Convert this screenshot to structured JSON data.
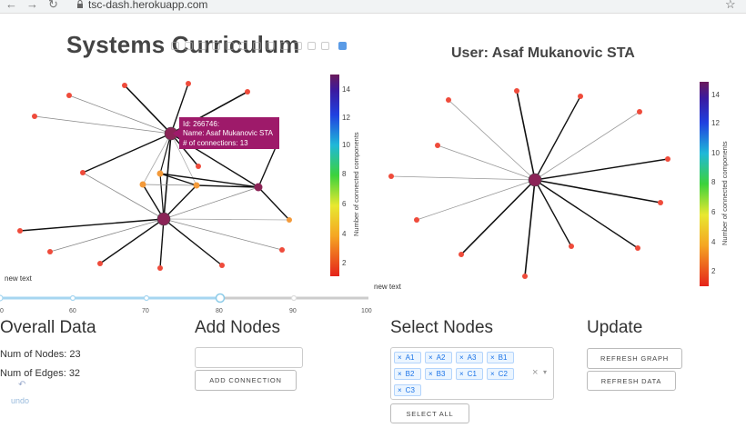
{
  "browser": {
    "url": "tsc-dash.herokuapp.com",
    "back": "←",
    "forward": "→",
    "reload": "↻",
    "bookmark": "☆"
  },
  "left_graph": {
    "title": "Systems Curriculum",
    "tooltip": {
      "id_line": "Id: 266746:",
      "name_line": "Name: Asaf Mukanovic STA",
      "conn_line": "# of connections: 13",
      "color": "#9e1a6a"
    },
    "colorbar": {
      "title": "Number of connected components",
      "ticks": [
        "2",
        "4",
        "6",
        "8",
        "10",
        "12",
        "14"
      ]
    },
    "footnote": "new text"
  },
  "right_graph": {
    "title": "User: Asaf Mukanovic STA",
    "colorbar": {
      "title": "Number of connected components",
      "ticks": [
        "2",
        "4",
        "6",
        "8",
        "10",
        "12",
        "14"
      ]
    },
    "footnote": "new text"
  },
  "slider": {
    "min": 50,
    "max": 100,
    "value": 80,
    "labels": [
      "0",
      "60",
      "70",
      "80",
      "90",
      "100"
    ]
  },
  "overall": {
    "heading": "Overall Data",
    "nodes": "Num of Nodes: 23",
    "edges": "Num of Edges: 32",
    "undo_icon": "undo-icon",
    "undo_label": "undo"
  },
  "add_nodes": {
    "heading": "Add Nodes",
    "input_value": "",
    "button": "Add Connection"
  },
  "select_nodes": {
    "heading": "Select Nodes",
    "chips": [
      "A1",
      "A2",
      "A3",
      "B1",
      "B2",
      "B3",
      "C1",
      "C2",
      "C3"
    ],
    "clear": "×",
    "caret": "▾",
    "button": "Select All",
    "chip_remove": "×"
  },
  "update": {
    "heading": "Update",
    "refresh_graph": "Refresh Graph",
    "refresh_data": "Refresh Data"
  },
  "colors": {
    "red_node": "#ef4b3b",
    "orange_node": "#f39a3a",
    "hub_node": "#8b2457",
    "accent": "#1a73e8"
  }
}
